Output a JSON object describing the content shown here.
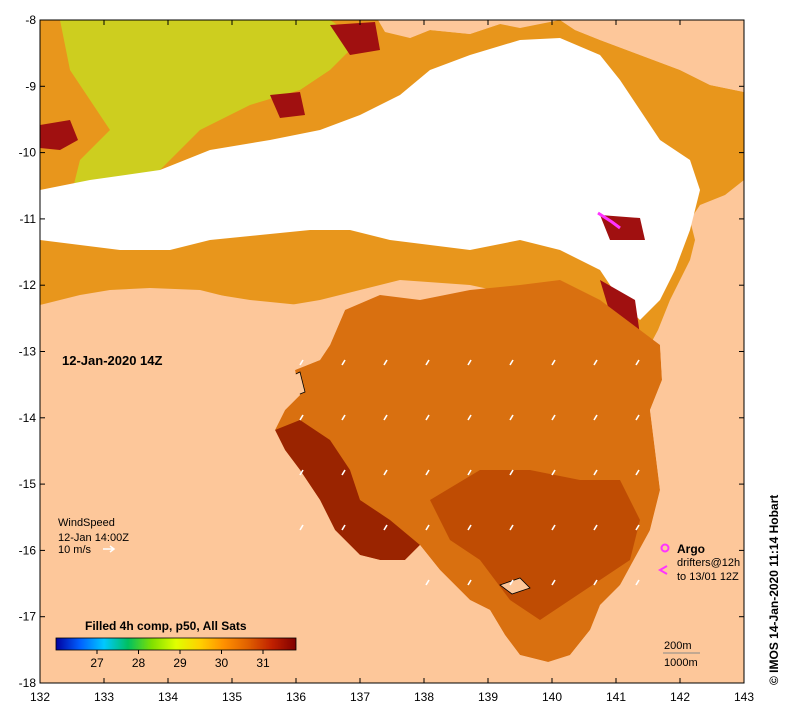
{
  "map": {
    "date_label": "12-Jan-2020 14Z",
    "x_ticks": [
      "132",
      "133",
      "134",
      "135",
      "136",
      "137",
      "138",
      "139",
      "140",
      "141",
      "142",
      "143"
    ],
    "y_ticks": [
      "-8",
      "-9",
      "-10",
      "-11",
      "-12",
      "-13",
      "-14",
      "-15",
      "-16",
      "-17",
      "-18"
    ],
    "wind": {
      "title": "WindSpeed",
      "time": "12-Jan 14:00Z",
      "scale": "10 m/s"
    },
    "legend": {
      "argo_label": "Argo",
      "drifter_label": "drifters@12h",
      "drifter_to": "to 13/01 12Z",
      "argo_color": "#ff33ff"
    },
    "depth": {
      "c200": "200m",
      "c1000": "1000m"
    },
    "colorbar": {
      "title": "Filled 4h comp, p50, All Sats",
      "ticks": [
        "27",
        "28",
        "29",
        "30",
        "31"
      ],
      "colors": [
        "#0000a0",
        "#0060ff",
        "#00c8ff",
        "#00c060",
        "#80e000",
        "#e0ff00",
        "#ffd000",
        "#ff9000",
        "#e06000",
        "#c02000",
        "#800000"
      ]
    },
    "copyright": "© IMOS 14-Jan-2020 11:14 Hobart",
    "colors": {
      "land": "#fdc79a",
      "cloud": "#ffffff",
      "sea_warm": "#e07a10",
      "sea_hot": "#b83a00"
    }
  }
}
